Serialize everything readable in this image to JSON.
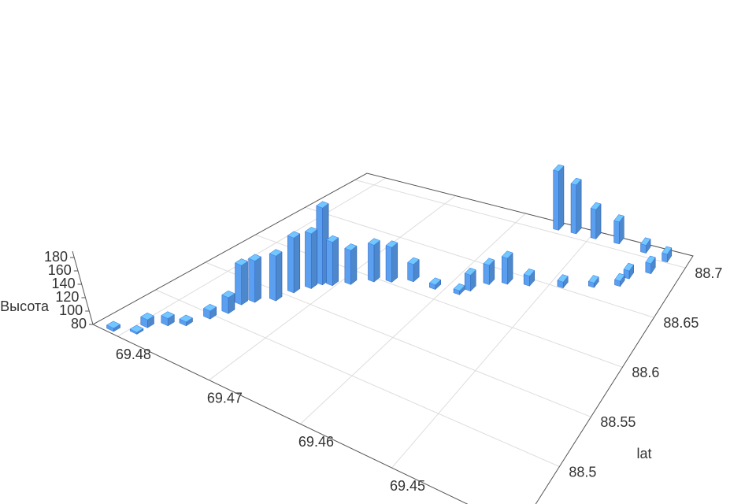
{
  "chart_data": {
    "type": "bar3d",
    "x": [
      69.4811,
      69.4794,
      69.4794,
      69.4783,
      69.4771,
      69.4762,
      69.4755,
      69.4755,
      69.4748,
      69.4734,
      69.4729,
      69.472,
      69.4715,
      69.4706,
      69.4692,
      69.4675,
      69.4659,
      69.464,
      69.4612,
      69.4584,
      69.4577,
      69.4565,
      69.4547,
      69.4523,
      69.4486,
      69.4453,
      69.4425,
      69.4421,
      69.44,
      69.439,
      69.4423,
      69.4463,
      69.4495,
      69.4523,
      69.4547
    ],
    "y": [
      88.443,
      88.451,
      88.462,
      88.473,
      88.481,
      88.498,
      88.511,
      88.525,
      88.533,
      88.543,
      88.558,
      88.569,
      88.577,
      88.58,
      88.588,
      88.599,
      88.605,
      88.613,
      88.613,
      88.616,
      88.623,
      88.635,
      88.641,
      88.646,
      88.654,
      88.663,
      88.671,
      88.68,
      88.69,
      88.704,
      88.707,
      88.709,
      88.708,
      88.708,
      88.707
    ],
    "values": [
      85,
      83,
      92,
      91,
      86,
      92,
      104,
      139,
      142,
      147,
      162,
      162,
      195,
      145,
      131,
      135,
      132,
      106,
      87,
      86,
      104,
      109,
      119,
      95,
      89,
      87,
      88,
      92,
      95,
      92,
      92,
      113,
      124,
      153,
      168
    ],
    "color": "#5b9ff0",
    "xlim": [
      69.436,
      69.4827
    ],
    "ylim": [
      88.437,
      88.712
    ],
    "zlim": [
      80,
      180
    ],
    "xticks": [
      69.45,
      69.46,
      69.47,
      69.48
    ],
    "yticks": [
      88.5,
      88.55,
      88.6,
      88.65,
      88.7
    ],
    "zticks": [
      80,
      100,
      120,
      140,
      160,
      180
    ],
    "ylabel": "lat",
    "zlabel": "Высота",
    "grid": true
  }
}
